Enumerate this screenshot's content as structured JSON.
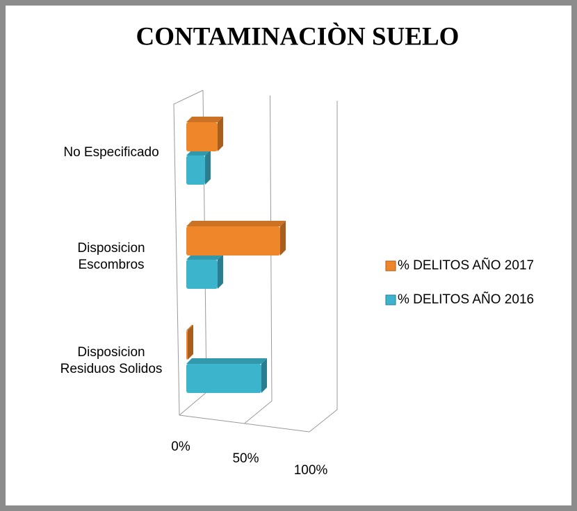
{
  "chart_data": {
    "type": "bar3d",
    "orientation": "horizontal",
    "title": "CONTAMINACIÒN SUELO",
    "categories": [
      "Disposicion Residuos Solidos",
      "Disposicion Escombros",
      "No Especificado"
    ],
    "series": [
      {
        "name": "% DELITOS AÑO 2016",
        "color": "#3bb4cc",
        "values": [
          60,
          25,
          15
        ]
      },
      {
        "name": "% DELITOS AÑO 2017",
        "color": "#f0862a",
        "values": [
          0,
          75,
          25
        ]
      }
    ],
    "xlim": [
      0,
      100
    ],
    "xticks": [
      {
        "value": 0,
        "label": "0%"
      },
      {
        "value": 50,
        "label": "50%"
      },
      {
        "value": 100,
        "label": "100%"
      }
    ],
    "grid": true,
    "legend": "right"
  }
}
